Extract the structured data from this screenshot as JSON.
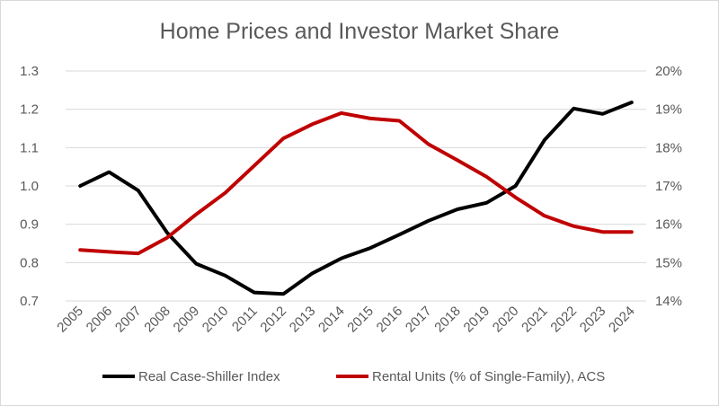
{
  "chart_data": {
    "type": "line",
    "title": "Home Prices and Investor Market Share",
    "categories": [
      "2005",
      "2006",
      "2007",
      "2008",
      "2009",
      "2010",
      "2011",
      "2012",
      "2013",
      "2014",
      "2015",
      "2016",
      "2017",
      "2018",
      "2019",
      "2020",
      "2021",
      "2022",
      "2023",
      "2024"
    ],
    "left_axis": {
      "ylim": [
        0.7,
        1.3
      ],
      "ticks": [
        0.7,
        0.8,
        0.9,
        1.0,
        1.1,
        1.2,
        1.3
      ],
      "tick_labels": [
        "0.7",
        "0.8",
        "0.9",
        "1.0",
        "1.1",
        "1.2",
        "1.3"
      ]
    },
    "right_axis": {
      "ylim": [
        14,
        20
      ],
      "ticks": [
        14,
        15,
        16,
        17,
        18,
        19,
        20
      ],
      "tick_labels": [
        "14%",
        "15%",
        "16%",
        "17%",
        "18%",
        "19%",
        "20%"
      ]
    },
    "grid": true,
    "legend_position": "bottom",
    "series": [
      {
        "name": "Real Case-Shiller Index",
        "axis": "left",
        "color": "#000000",
        "values": [
          1.0,
          1.036,
          0.988,
          0.878,
          0.797,
          0.766,
          0.722,
          0.718,
          0.772,
          0.811,
          0.838,
          0.873,
          0.909,
          0.939,
          0.956,
          1.0,
          1.12,
          1.202,
          1.188,
          1.218
        ]
      },
      {
        "name": "Rental Units (% of Single-Family), ACS",
        "axis": "right",
        "color": "#c00000",
        "values": [
          15.33,
          15.28,
          15.24,
          15.65,
          16.26,
          16.82,
          17.53,
          18.24,
          18.61,
          18.9,
          18.76,
          18.7,
          18.09,
          17.67,
          17.24,
          16.7,
          16.22,
          15.95,
          15.8,
          15.8
        ]
      }
    ]
  }
}
